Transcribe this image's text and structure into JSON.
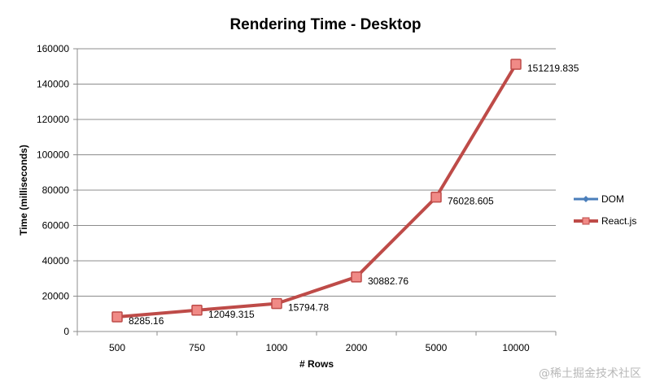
{
  "chart_data": {
    "type": "line",
    "title": "Rendering Time - Desktop",
    "xlabel": "# Rows",
    "ylabel": "Time (milliseconds)",
    "categories": [
      "500",
      "750",
      "1000",
      "2000",
      "5000",
      "10000"
    ],
    "ylim": [
      0,
      160000
    ],
    "yticks": [
      0,
      20000,
      40000,
      60000,
      80000,
      100000,
      120000,
      140000,
      160000
    ],
    "ytick_labels": [
      "0",
      "20000",
      "40000",
      "60000",
      "80000",
      "100000",
      "120000",
      "140000",
      "160000"
    ],
    "grid": true,
    "legend_position": "right",
    "series": [
      {
        "name": "DOM",
        "color": "#4a7ebb",
        "marker": "diamond",
        "values": [
          8285.16,
          12049.315,
          15794.78,
          30882.76,
          76028.605,
          151219.835
        ]
      },
      {
        "name": "React.js",
        "color": "#be4b48",
        "marker": "square",
        "values": [
          8285.16,
          12049.315,
          15794.78,
          30882.76,
          76028.605,
          151219.835
        ],
        "data_labels": [
          "8285.16",
          "12049.315",
          "15794.78",
          "30882.76",
          "76028.605",
          "151219.835"
        ]
      }
    ]
  },
  "watermark": "@稀土掘金技术社区"
}
